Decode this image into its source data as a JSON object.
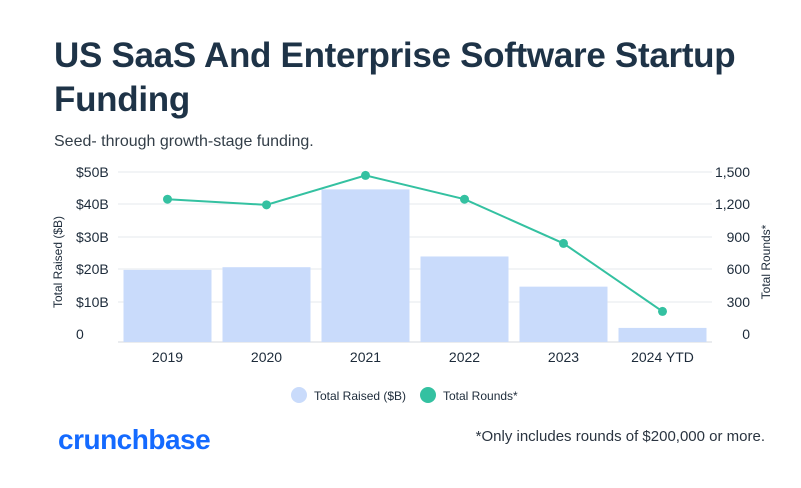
{
  "page": {
    "title": "US SaaS And Enterprise Software Startup Funding",
    "subtitle": "Seed- through growth-stage funding.",
    "brand": "crunchbase",
    "footnote": "*Only includes rounds of $200,000 or more."
  },
  "colors": {
    "bar": "#c9dbfb",
    "line": "#34c1a1",
    "grid": "#e6e9ee",
    "brand": "#146aff"
  },
  "chart_data": {
    "type": "bar+line",
    "categories": [
      "2019",
      "2020",
      "2021",
      "2022",
      "2023",
      "2024 YTD"
    ],
    "series": [
      {
        "name": "Total Raised ($B)",
        "type": "bar",
        "axis": "left",
        "values": [
          21.5,
          22.3,
          45.5,
          25.5,
          16.5,
          4.2
        ]
      },
      {
        "name": "Total Rounds*",
        "type": "line",
        "axis": "right",
        "values": [
          1260,
          1210,
          1470,
          1260,
          870,
          270
        ]
      }
    ],
    "y_left": {
      "label": "Total Raised ($B)",
      "ticks": [
        "0",
        "$10B",
        "$20B",
        "$30B",
        "$40B",
        "$50B"
      ],
      "range": [
        0,
        48
      ]
    },
    "y_right": {
      "label": "Total Rounds*",
      "ticks": [
        "0",
        "300",
        "600",
        "900",
        "1,200",
        "1,500"
      ],
      "range": [
        0,
        1500
      ]
    },
    "legend_position": "bottom-center",
    "grid": true
  }
}
